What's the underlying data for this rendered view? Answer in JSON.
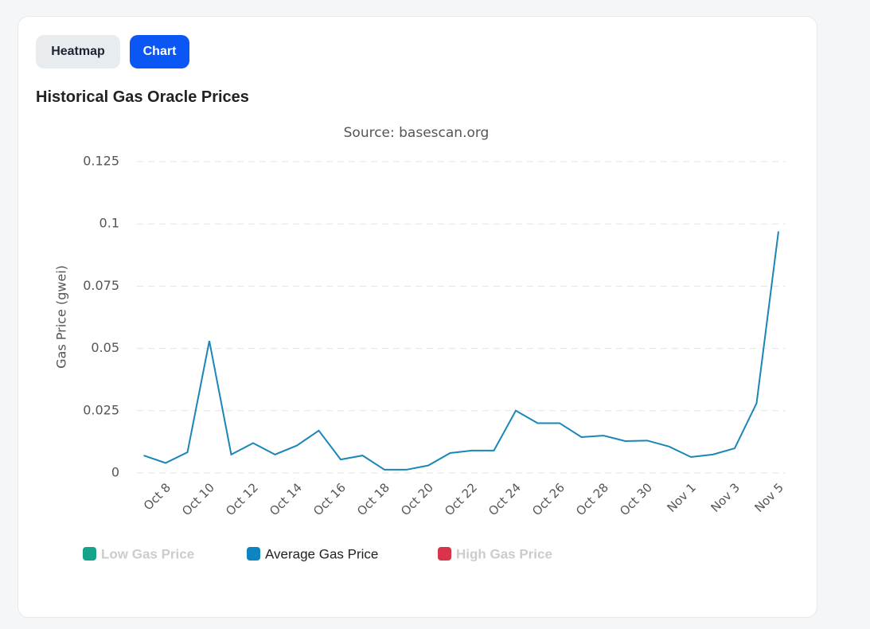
{
  "tabs": [
    "Heatmap",
    "Chart"
  ],
  "active_tab": "Chart",
  "chart_data": {
    "type": "line",
    "title": "Historical Gas Oracle Prices",
    "subtitle": "Source: basescan.org",
    "y_label": "Gas Price (gwei)",
    "categories": [
      null,
      "Oct 8",
      null,
      "Oct 10",
      null,
      "Oct 12",
      null,
      "Oct 14",
      null,
      "Oct 16",
      null,
      "Oct 18",
      null,
      "Oct 20",
      null,
      "Oct 22",
      null,
      "Oct 24",
      null,
      "Oct 26",
      null,
      "Oct 28",
      null,
      "Oct 30",
      null,
      "Nov 1",
      null,
      "Nov 3",
      null,
      "Nov 5"
    ],
    "series": [
      {
        "name": "Average Gas Price",
        "color": "#0e84c1",
        "line_color": "#1a86b8",
        "values": [
          0.007,
          0.004,
          0.0083,
          0.053,
          0.0074,
          0.012,
          0.0074,
          0.011,
          0.017,
          0.0054,
          0.007,
          0.0013,
          0.0013,
          0.003,
          0.008,
          0.009,
          0.009,
          0.025,
          0.02,
          0.02,
          0.0144,
          0.015,
          0.0128,
          0.013,
          0.0106,
          0.0064,
          0.0074,
          0.0099,
          0.028,
          0.097
        ]
      }
    ],
    "hidden_series": [
      {
        "name": "Low Gas Price",
        "color": "#14a38b"
      },
      {
        "name": "High Gas Price",
        "color": "#d9344a"
      }
    ],
    "ylim": [
      0,
      0.125
    ],
    "yticks": [
      0,
      0.025,
      0.05,
      0.075,
      0.1,
      0.125
    ],
    "grid": true
  }
}
